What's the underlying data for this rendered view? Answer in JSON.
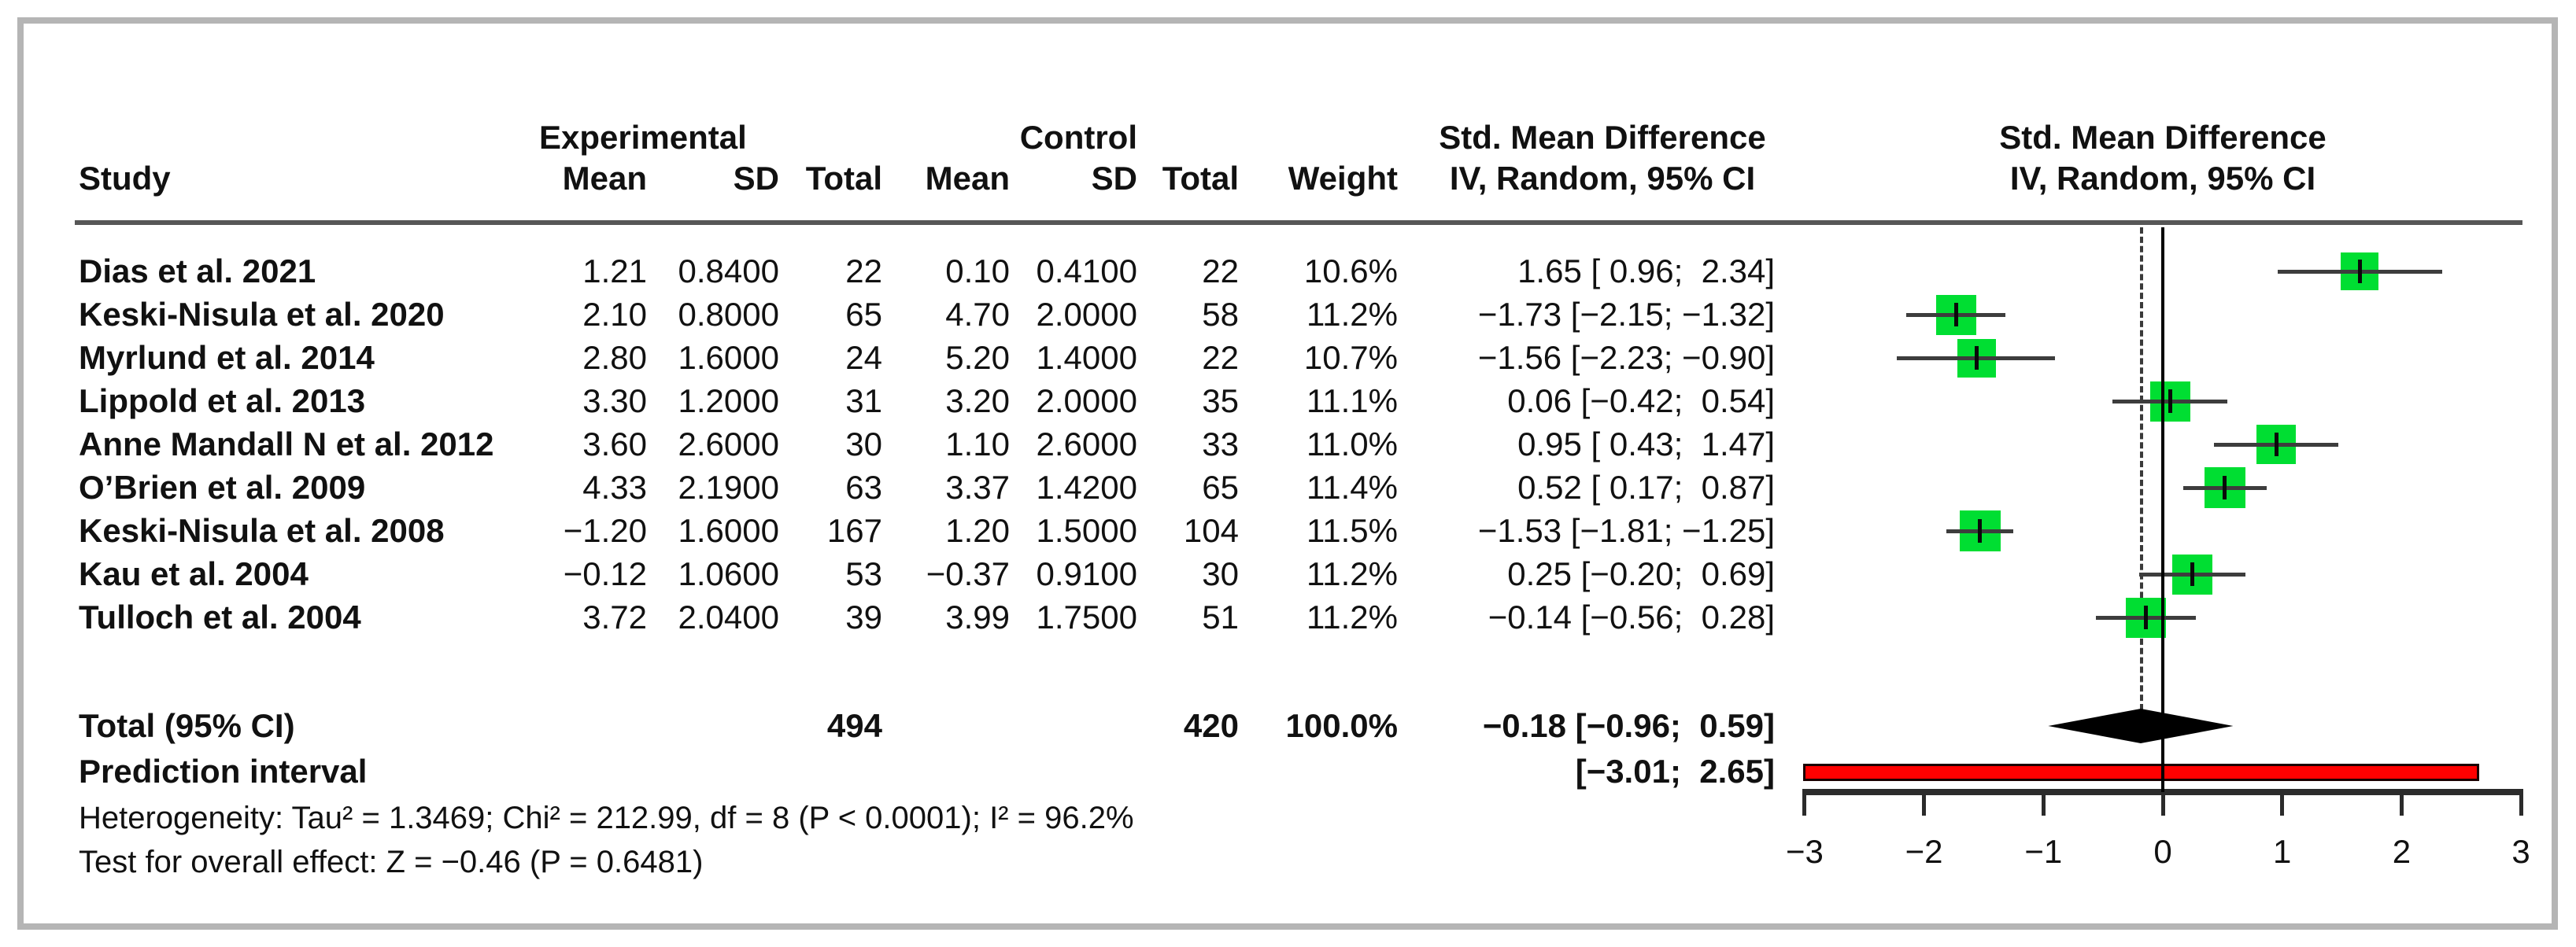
{
  "title_headers": {
    "study": "Study",
    "experimental_group": "Experimental",
    "control_group": "Control",
    "exp_mean": "Mean",
    "exp_sd": "SD",
    "exp_total": "Total",
    "ctrl_mean": "Mean",
    "ctrl_sd": "SD",
    "ctrl_total": "Total",
    "weight": "Weight",
    "smd_col_line1": "Std. Mean Difference",
    "smd_col_line2": "IV, Random, 95% CI",
    "smd_plot_line1": "Std. Mean Difference",
    "smd_plot_line2": "IV, Random, 95% CI"
  },
  "chart_data": {
    "type": "forest",
    "effect_measure": "Std. Mean Difference",
    "model": "IV, Random, 95% CI",
    "x_axis": {
      "range": [
        -3,
        3
      ],
      "ticks": [
        -3,
        -2,
        -1,
        0,
        1,
        2,
        3
      ],
      "tick_labels": [
        "−3",
        "−2",
        "−1",
        "0",
        "1",
        "2",
        "3"
      ]
    },
    "reference_line": 0,
    "pooled_effect_line": -0.18,
    "studies": [
      {
        "name": "Dias et al. 2021",
        "exp_mean": "1.21",
        "exp_sd": "0.8400",
        "exp_total": "22",
        "ctrl_mean": "0.10",
        "ctrl_sd": "0.4100",
        "ctrl_total": "22",
        "weight": "10.6%",
        "est": 1.65,
        "lo": 0.96,
        "hi": 2.34,
        "ci_text": "1.65 [ 0.96;  2.34]"
      },
      {
        "name": "Keski-Nisula et al. 2020",
        "exp_mean": "2.10",
        "exp_sd": "0.8000",
        "exp_total": "65",
        "ctrl_mean": "4.70",
        "ctrl_sd": "2.0000",
        "ctrl_total": "58",
        "weight": "11.2%",
        "est": -1.73,
        "lo": -2.15,
        "hi": -1.32,
        "ci_text": "−1.73 [−2.15; −1.32]"
      },
      {
        "name": "Myrlund et al. 2014",
        "exp_mean": "2.80",
        "exp_sd": "1.6000",
        "exp_total": "24",
        "ctrl_mean": "5.20",
        "ctrl_sd": "1.4000",
        "ctrl_total": "22",
        "weight": "10.7%",
        "est": -1.56,
        "lo": -2.23,
        "hi": -0.9,
        "ci_text": "−1.56 [−2.23; −0.90]"
      },
      {
        "name": "Lippold et al. 2013",
        "exp_mean": "3.30",
        "exp_sd": "1.2000",
        "exp_total": "31",
        "ctrl_mean": "3.20",
        "ctrl_sd": "2.0000",
        "ctrl_total": "35",
        "weight": "11.1%",
        "est": 0.06,
        "lo": -0.42,
        "hi": 0.54,
        "ci_text": "0.06 [−0.42;  0.54]"
      },
      {
        "name": "Anne Mandall N et al. 2012",
        "exp_mean": "3.60",
        "exp_sd": "2.6000",
        "exp_total": "30",
        "ctrl_mean": "1.10",
        "ctrl_sd": "2.6000",
        "ctrl_total": "33",
        "weight": "11.0%",
        "est": 0.95,
        "lo": 0.43,
        "hi": 1.47,
        "ci_text": "0.95 [ 0.43;  1.47]"
      },
      {
        "name": "O’Brien et al. 2009",
        "exp_mean": "4.33",
        "exp_sd": "2.1900",
        "exp_total": "63",
        "ctrl_mean": "3.37",
        "ctrl_sd": "1.4200",
        "ctrl_total": "65",
        "weight": "11.4%",
        "est": 0.52,
        "lo": 0.17,
        "hi": 0.87,
        "ci_text": "0.52 [ 0.17;  0.87]"
      },
      {
        "name": "Keski-Nisula et al. 2008",
        "exp_mean": "−1.20",
        "exp_sd": "1.6000",
        "exp_total": "167",
        "ctrl_mean": "1.20",
        "ctrl_sd": "1.5000",
        "ctrl_total": "104",
        "weight": "11.5%",
        "est": -1.53,
        "lo": -1.81,
        "hi": -1.25,
        "ci_text": "−1.53 [−1.81; −1.25]"
      },
      {
        "name": "Kau et al. 2004",
        "exp_mean": "−0.12",
        "exp_sd": "1.0600",
        "exp_total": "53",
        "ctrl_mean": "−0.37",
        "ctrl_sd": "0.9100",
        "ctrl_total": "30",
        "weight": "11.2%",
        "est": 0.25,
        "lo": -0.2,
        "hi": 0.69,
        "ci_text": "0.25 [−0.20;  0.69]"
      },
      {
        "name": "Tulloch et al. 2004",
        "exp_mean": "3.72",
        "exp_sd": "2.0400",
        "exp_total": "39",
        "ctrl_mean": "3.99",
        "ctrl_sd": "1.7500",
        "ctrl_total": "51",
        "weight": "11.2%",
        "est": -0.14,
        "lo": -0.56,
        "hi": 0.28,
        "ci_text": "−0.14 [−0.56;  0.28]"
      }
    ],
    "total": {
      "label": "Total (95% CI)",
      "exp_total": "494",
      "ctrl_total": "420",
      "weight": "100.0%",
      "est": -0.18,
      "lo": -0.96,
      "hi": 0.59,
      "ci_text": "−0.18 [−0.96;  0.59]"
    },
    "prediction_interval": {
      "label": "Prediction interval",
      "lo": -3.01,
      "hi": 2.65,
      "ci_text": "[−3.01;  2.65]"
    },
    "footnotes": {
      "heterogeneity": "Heterogeneity: Tau² = 1.3469; Chi² = 212.99, df = 8 (P < 0.0001); I² = 96.2%",
      "overall_effect": "Test for overall effect: Z = −0.46 (P = 0.6481)"
    },
    "colors": {
      "square_fill": "#00de32",
      "ci_line": "#3d3d3d",
      "diamond_fill": "#000000",
      "prediction_fill": "#fe0000",
      "prediction_border": "#1a0000",
      "axis": "#2b2b2b",
      "header_rule": "#575757",
      "frame_border": "#b5b5b5"
    }
  }
}
